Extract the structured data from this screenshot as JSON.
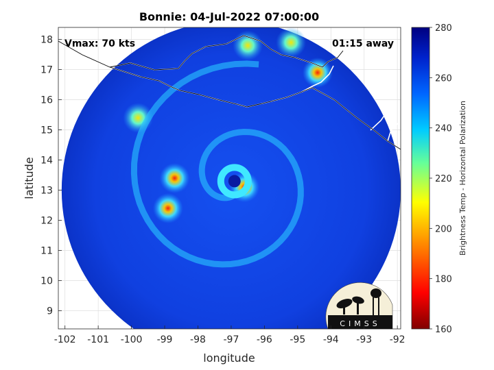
{
  "chart_data": {
    "type": "heatmap",
    "title": "Bonnie: 04-Jul-2022 07:00:00",
    "xlabel": "longitude",
    "ylabel": "latitude",
    "xlim": [
      -102.2,
      -91.9
    ],
    "ylim": [
      8.4,
      18.4
    ],
    "x_ticks": [
      -102,
      -101,
      -100,
      -99,
      -98,
      -97,
      -96,
      -95,
      -94,
      -93,
      -92
    ],
    "y_ticks": [
      9,
      10,
      11,
      12,
      13,
      14,
      15,
      16,
      17,
      18
    ],
    "grid": true,
    "colorbar": {
      "label": "Brightness Temp - Horizontal Polarization",
      "range": [
        160,
        280
      ],
      "ticks": [
        160,
        180,
        200,
        220,
        240,
        260,
        280
      ],
      "colormap": [
        "#800000",
        "#ff0000",
        "#ff8000",
        "#ffff00",
        "#80ff80",
        "#00ffff",
        "#0080ff",
        "#0000ff",
        "#000080"
      ]
    },
    "storm_center": {
      "lon": -96.9,
      "lat": 13.3
    },
    "swath": {
      "center_lon": -97.0,
      "center_lat": 13.0,
      "radius_deg": 5.1
    },
    "annotations": {
      "vmax": "Vmax: 70 kts",
      "time_away": "01:15 away"
    },
    "cold_cloud_features": [
      {
        "lon": -96.6,
        "lat": 13.1,
        "temp": 185
      },
      {
        "lon": -98.9,
        "lat": 12.4,
        "temp": 180
      },
      {
        "lon": -98.7,
        "lat": 13.4,
        "temp": 195
      },
      {
        "lon": -99.8,
        "lat": 15.4,
        "temp": 210
      },
      {
        "lon": -96.5,
        "lat": 17.8,
        "temp": 220
      },
      {
        "lon": -94.4,
        "lat": 16.9,
        "temp": 195
      },
      {
        "lon": -95.2,
        "lat": 17.9,
        "temp": 230
      }
    ],
    "logo_text": "CIMSS"
  }
}
